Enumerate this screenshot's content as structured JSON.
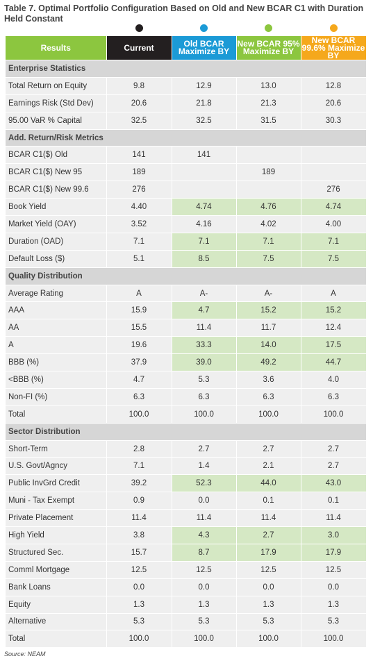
{
  "title": "Table 7. Optimal Portfolio Configuration Based on Old and New BCAR C1 with Duration Held Constant",
  "columns": [
    {
      "label": "Results",
      "color": "#8cc63f"
    },
    {
      "label": "Current",
      "color": "#231f20"
    },
    {
      "label": "Old BCAR Maximize BY",
      "color": "#1b9ad6"
    },
    {
      "label": "New BCAR 95% Maximize BY",
      "color": "#8cc63f"
    },
    {
      "label": "New BCAR 99.6% Maximize BY",
      "color": "#f5a81c"
    }
  ],
  "highlight_color": "#d5e8c4",
  "sections": [
    {
      "title": "Enterprise Statistics",
      "rows": [
        {
          "label": "Total Return on Equity",
          "values": [
            "9.8",
            "12.9",
            "13.0",
            "12.8"
          ],
          "highlight": false
        },
        {
          "label": "Earnings Risk (Std Dev)",
          "values": [
            "20.6",
            "21.8",
            "21.3",
            "20.6"
          ],
          "highlight": false
        },
        {
          "label": "95.00 VaR % Capital",
          "values": [
            "32.5",
            "32.5",
            "31.5",
            "30.3"
          ],
          "highlight": false
        }
      ]
    },
    {
      "title": "Add. Return/Risk Metrics",
      "rows": [
        {
          "label": "BCAR C1($) Old",
          "values": [
            "141",
            "141",
            "",
            ""
          ],
          "highlight": false
        },
        {
          "label": "BCAR C1($) New 95",
          "values": [
            "189",
            "",
            "189",
            ""
          ],
          "highlight": false
        },
        {
          "label": "BCAR C1($) New 99.6",
          "values": [
            "276",
            "",
            "",
            "276"
          ],
          "highlight": false
        },
        {
          "label": "Book Yield",
          "values": [
            "4.40",
            "4.74",
            "4.76",
            "4.74"
          ],
          "highlight": true
        },
        {
          "label": "Market Yield (OAY)",
          "values": [
            "3.52",
            "4.16",
            "4.02",
            "4.00"
          ],
          "highlight": false
        },
        {
          "label": "Duration (OAD)",
          "values": [
            "7.1",
            "7.1",
            "7.1",
            "7.1"
          ],
          "highlight": true
        },
        {
          "label": "Default Loss ($)",
          "values": [
            "5.1",
            "8.5",
            "7.5",
            "7.5"
          ],
          "highlight": true
        }
      ]
    },
    {
      "title": "Quality Distribution",
      "rows": [
        {
          "label": "Average Rating",
          "values": [
            "A",
            "A-",
            "A-",
            "A"
          ],
          "highlight": false
        },
        {
          "label": "AAA",
          "values": [
            "15.9",
            "4.7",
            "15.2",
            "15.2"
          ],
          "highlight": true
        },
        {
          "label": "AA",
          "values": [
            "15.5",
            "11.4",
            "11.7",
            "12.4"
          ],
          "highlight": false
        },
        {
          "label": "A",
          "values": [
            "19.6",
            "33.3",
            "14.0",
            "17.5"
          ],
          "highlight": true
        },
        {
          "label": "BBB (%)",
          "values": [
            "37.9",
            "39.0",
            "49.2",
            "44.7"
          ],
          "highlight": true
        },
        {
          "label": "<BBB (%)",
          "values": [
            "4.7",
            "5.3",
            "3.6",
            "4.0"
          ],
          "highlight": false
        },
        {
          "label": "Non-FI (%)",
          "values": [
            "6.3",
            "6.3",
            "6.3",
            "6.3"
          ],
          "highlight": false
        },
        {
          "label": "Total",
          "values": [
            "100.0",
            "100.0",
            "100.0",
            "100.0"
          ],
          "highlight": false
        }
      ]
    },
    {
      "title": "Sector Distribution",
      "rows": [
        {
          "label": "Short-Term",
          "values": [
            "2.8",
            "2.7",
            "2.7",
            "2.7"
          ],
          "highlight": false
        },
        {
          "label": "U.S. Govt/Agncy",
          "values": [
            "7.1",
            "1.4",
            "2.1",
            "2.7"
          ],
          "highlight": false
        },
        {
          "label": "Public InvGrd Credit",
          "values": [
            "39.2",
            "52.3",
            "44.0",
            "43.0"
          ],
          "highlight": true
        },
        {
          "label": "Muni - Tax Exempt",
          "values": [
            "0.9",
            "0.0",
            "0.1",
            "0.1"
          ],
          "highlight": false
        },
        {
          "label": "Private Placement",
          "values": [
            "11.4",
            "11.4",
            "11.4",
            "11.4"
          ],
          "highlight": false
        },
        {
          "label": "High Yield",
          "values": [
            "3.8",
            "4.3",
            "2.7",
            "3.0"
          ],
          "highlight": true
        },
        {
          "label": "Structured Sec.",
          "values": [
            "15.7",
            "8.7",
            "17.9",
            "17.9"
          ],
          "highlight": true
        },
        {
          "label": "Comml Mortgage",
          "values": [
            "12.5",
            "12.5",
            "12.5",
            "12.5"
          ],
          "highlight": false
        },
        {
          "label": "Bank Loans",
          "values": [
            "0.0",
            "0.0",
            "0.0",
            "0.0"
          ],
          "highlight": false
        },
        {
          "label": "Equity",
          "values": [
            "1.3",
            "1.3",
            "1.3",
            "1.3"
          ],
          "highlight": false
        },
        {
          "label": "Alternative",
          "values": [
            "5.3",
            "5.3",
            "5.3",
            "5.3"
          ],
          "highlight": false
        },
        {
          "label": "Total",
          "values": [
            "100.0",
            "100.0",
            "100.0",
            "100.0"
          ],
          "highlight": false
        }
      ]
    }
  ],
  "source": "Source: NEAM"
}
